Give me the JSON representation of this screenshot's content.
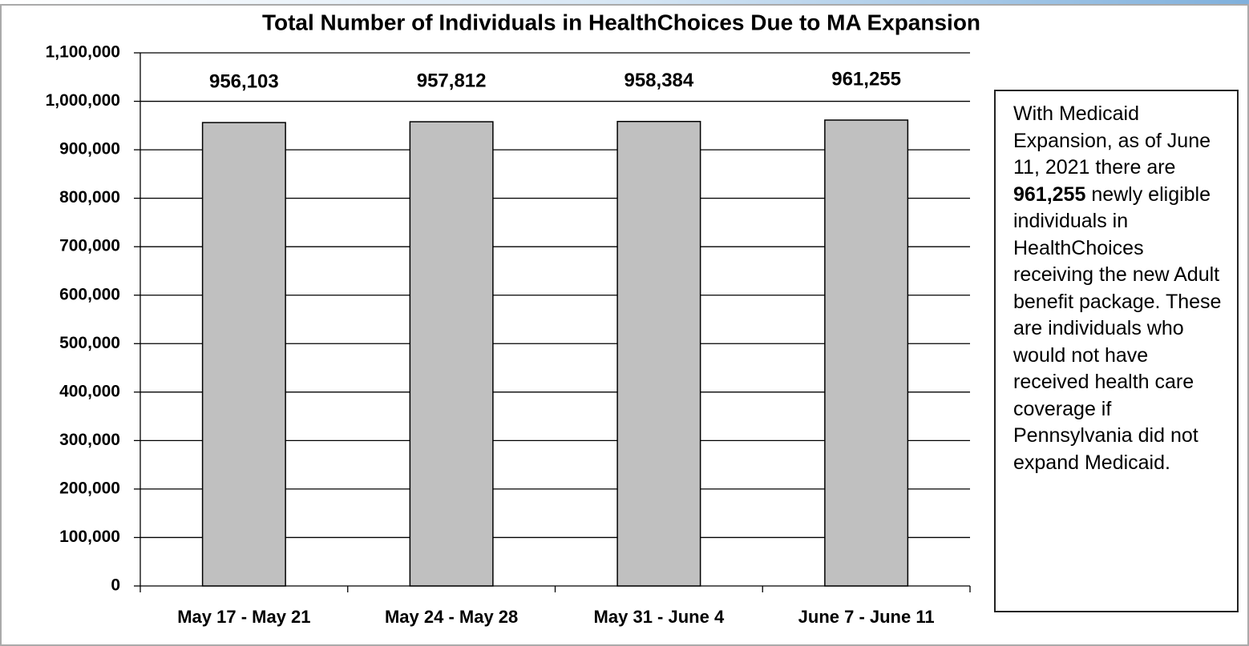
{
  "chart_data": {
    "type": "bar",
    "title": "Total Number of Individuals in HealthChoices Due to MA Expansion",
    "categories": [
      "May 17 - May 21",
      "May 24 - May 28",
      "May 31 - June 4",
      "June 7 - June 11"
    ],
    "values": [
      956103,
      957812,
      958384,
      961255
    ],
    "value_labels": [
      "956,103",
      "957,812",
      "958,384",
      "961,255"
    ],
    "color": "#c0c0c0",
    "ylim": [
      0,
      1100000
    ],
    "yticks": [
      0,
      {
        "value": 100000,
        "label": "100,000"
      },
      {
        "value": 200000,
        "label": "200,000"
      },
      {
        "value": 300000,
        "label": "300,000"
      },
      {
        "value": 400000,
        "label": "400,000"
      },
      {
        "value": 500000,
        "label": "500,000"
      },
      {
        "value": 600000,
        "label": "600,000"
      },
      {
        "value": 700000,
        "label": "700,000"
      },
      {
        "value": 800000,
        "label": "800,000"
      },
      {
        "value": 900000,
        "label": "900,000"
      },
      {
        "value": 1000000,
        "label": "1,000,000"
      },
      {
        "value": 1100000,
        "label": "1,100,000"
      }
    ],
    "grid": true,
    "annotation": [
      "With Medicaid Expansion, as of June 11, 2021 there are ",
      "961,255",
      " newly eligible individuals in HealthChoices receiving the new Adult benefit package.  These are individuals who would not have received health care coverage if Pennsylvania did not expand Medicaid."
    ]
  }
}
